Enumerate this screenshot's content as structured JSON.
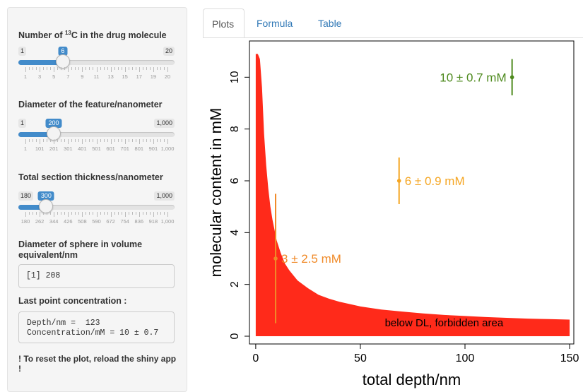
{
  "sidebar": {
    "carbon": {
      "label_pre": "Number of ",
      "label_sup": "13",
      "label_post": "C in the drug molecule",
      "min_label": "1",
      "max_label": "20",
      "value_label": "6",
      "min": 1,
      "max": 20,
      "value": 6,
      "tick_labels": [
        "1",
        "3",
        "5",
        "7",
        "9",
        "11",
        "13",
        "15",
        "17",
        "19",
        "20"
      ]
    },
    "diameter": {
      "label": "Diameter of the feature/nanometer",
      "min_label": "1",
      "max_label": "1,000",
      "value_label": "200",
      "min": 1,
      "max": 1000,
      "value": 200,
      "tick_labels": [
        "1",
        "101",
        "201",
        "301",
        "401",
        "501",
        "601",
        "701",
        "801",
        "901",
        "1,000"
      ]
    },
    "thickness": {
      "label": "Total section thickness/nanometer",
      "min_label": "180",
      "max_label": "1,000",
      "value_label": "300",
      "min": 180,
      "max": 1000,
      "value": 300,
      "tick_labels": [
        "180",
        "262",
        "344",
        "426",
        "508",
        "590",
        "672",
        "754",
        "836",
        "918",
        "1,000"
      ]
    },
    "sphere": {
      "label": "Diameter of sphere in volume equivalent/nm",
      "output": "[1] 208"
    },
    "last_point": {
      "label": "Last point concentration :",
      "line1": "Depth/nm =  123",
      "line2": "Concentration/mM = 10 ± 0.7"
    },
    "reset_note": "! To reset the plot, reload the shiny app !"
  },
  "tabs": [
    {
      "label": "Plots",
      "active": true
    },
    {
      "label": "Formula",
      "active": false
    },
    {
      "label": "Table",
      "active": false
    }
  ],
  "colors": {
    "area": "#ff2a1a",
    "point_orange_dark": "#f08a28",
    "point_orange": "#f5a623",
    "point_green": "#4e8a1e",
    "slider_blue": "#428bca"
  },
  "chart_data": {
    "type": "scatter",
    "xlabel": "total depth/nm",
    "ylabel": "molecular content in mM",
    "xlim": [
      -3,
      152
    ],
    "ylim": [
      -0.3,
      11.4
    ],
    "x_ticks": [
      0,
      50,
      100,
      150
    ],
    "y_ticks": [
      0,
      2,
      4,
      6,
      8,
      10
    ],
    "area": {
      "label": "below DL, forbidden area",
      "x": [
        0,
        0.5,
        1,
        2,
        3,
        4,
        5,
        6,
        7,
        8,
        9,
        10,
        12,
        14,
        16,
        18,
        20,
        25,
        30,
        35,
        40,
        50,
        60,
        70,
        80,
        90,
        100,
        110,
        120,
        130,
        140,
        150
      ],
      "y": [
        10.9,
        10.9,
        10.9,
        10.7,
        9.6,
        7.8,
        6.6,
        5.7,
        5.0,
        4.5,
        4.1,
        3.7,
        3.2,
        2.8,
        2.55,
        2.35,
        2.15,
        1.85,
        1.6,
        1.45,
        1.33,
        1.15,
        1.03,
        0.95,
        0.88,
        0.82,
        0.78,
        0.74,
        0.71,
        0.68,
        0.66,
        0.64
      ]
    },
    "points": [
      {
        "x": 9.5,
        "y": 3,
        "err": 2.5,
        "label": "3 ± 2.5  mM",
        "color": "#f08a28"
      },
      {
        "x": 68.5,
        "y": 6,
        "err": 0.9,
        "label": "6 ± 0.9  mM",
        "color": "#f5a623"
      },
      {
        "x": 122.5,
        "y": 10,
        "err": 0.7,
        "label": "10 ± 0.7  mM",
        "color": "#4e8a1e"
      }
    ]
  }
}
